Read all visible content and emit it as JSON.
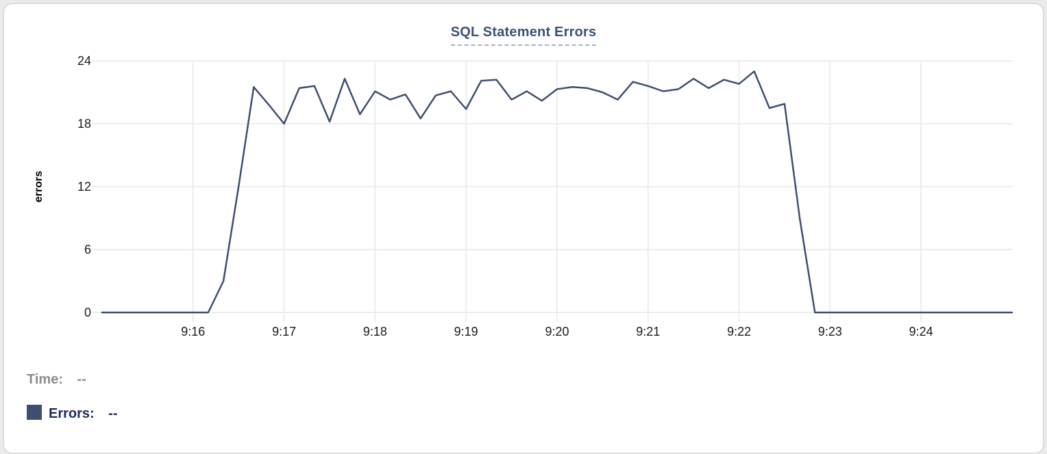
{
  "card": {
    "title": "SQL Statement Errors"
  },
  "y_axis_label": "errors",
  "tooltip": {
    "time_label": "Time:",
    "time_value": "--",
    "errors_label": "Errors:",
    "errors_value": "--"
  },
  "colors": {
    "line": "#3e4e6e",
    "swatch": "#3e4e6e",
    "errors_text": "#1c2a5e",
    "time_text": "#8c8c8c",
    "title_text": "#3c5274",
    "title_underline": "#a3aec2",
    "gridline": "#ededed",
    "tick_text": "#1a1a1a"
  },
  "chart_data": {
    "type": "line",
    "title": "SQL Statement Errors",
    "xlabel": "",
    "ylabel": "errors",
    "ylim": [
      0,
      24
    ],
    "y_ticks": [
      0,
      6,
      12,
      18,
      24
    ],
    "x_ticks": [
      "9:16",
      "9:17",
      "9:18",
      "9:19",
      "9:20",
      "9:21",
      "9:22",
      "9:23",
      "9:24"
    ],
    "grid": true,
    "legend_position": "below-left",
    "series": [
      {
        "name": "Errors",
        "color": "#3e4e6e",
        "x": [
          "9:15:00",
          "9:15:10",
          "9:15:20",
          "9:15:30",
          "9:15:40",
          "9:15:50",
          "9:16:00",
          "9:16:10",
          "9:16:20",
          "9:16:30",
          "9:16:40",
          "9:16:50",
          "9:17:00",
          "9:17:10",
          "9:17:20",
          "9:17:30",
          "9:17:40",
          "9:17:50",
          "9:18:00",
          "9:18:10",
          "9:18:20",
          "9:18:30",
          "9:18:40",
          "9:18:50",
          "9:19:00",
          "9:19:10",
          "9:19:20",
          "9:19:30",
          "9:19:40",
          "9:19:50",
          "9:20:00",
          "9:20:10",
          "9:20:20",
          "9:20:30",
          "9:20:40",
          "9:20:50",
          "9:21:00",
          "9:21:10",
          "9:21:20",
          "9:21:30",
          "9:21:40",
          "9:21:50",
          "9:22:00",
          "9:22:10",
          "9:22:20",
          "9:22:30",
          "9:22:40",
          "9:22:50",
          "9:23:00",
          "9:23:10",
          "9:23:20",
          "9:23:30",
          "9:23:40",
          "9:23:50",
          "9:24:00",
          "9:24:10",
          "9:24:20",
          "9:24:30",
          "9:24:40",
          "9:24:50",
          "9:25:00"
        ],
        "values": [
          0,
          0,
          0,
          0,
          0,
          0,
          0,
          0,
          3,
          12,
          21.5,
          19.8,
          18,
          21.4,
          21.6,
          18.2,
          22.3,
          18.9,
          21.1,
          20.3,
          20.8,
          18.5,
          20.7,
          21.1,
          19.4,
          22.1,
          22.2,
          20.3,
          21.1,
          20.2,
          21.3,
          21.5,
          21.4,
          21.0,
          20.3,
          22.0,
          21.6,
          21.1,
          21.3,
          22.3,
          21.4,
          22.2,
          21.8,
          23.0,
          19.5,
          19.9,
          9,
          0,
          0,
          0,
          0,
          0,
          0,
          0,
          0,
          0,
          0,
          0,
          0,
          0,
          0
        ]
      }
    ]
  }
}
